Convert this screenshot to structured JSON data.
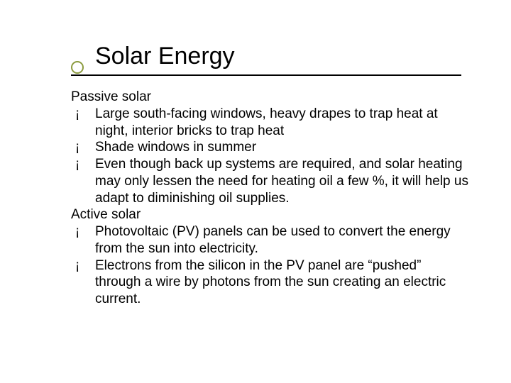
{
  "slide": {
    "title": "Solar Energy",
    "title_fontsize": 34,
    "title_font": "Arial",
    "bullet_circle_color": "#8c9b3f",
    "underline_color": "#000000",
    "body_fontsize": 19,
    "body_font": "Verdana",
    "text_color": "#000000",
    "background_color": "#ffffff",
    "bullet_symbol": "¡",
    "sections": [
      {
        "heading": "Passive solar",
        "items": [
          "Large south-facing windows, heavy drapes to trap heat at night, interior bricks to trap heat",
          "Shade windows in summer",
          "Even though back up systems are required, and solar heating may only lessen the need for heating oil a few %, it will help us adapt to diminishing oil supplies."
        ]
      },
      {
        "heading": "Active solar",
        "items": [
          "Photovoltaic (PV) panels can be used to convert the energy from the sun into electricity.",
          "Electrons from the silicon in the PV panel are “pushed” through a wire by photons from the sun creating an electric current."
        ]
      }
    ]
  }
}
